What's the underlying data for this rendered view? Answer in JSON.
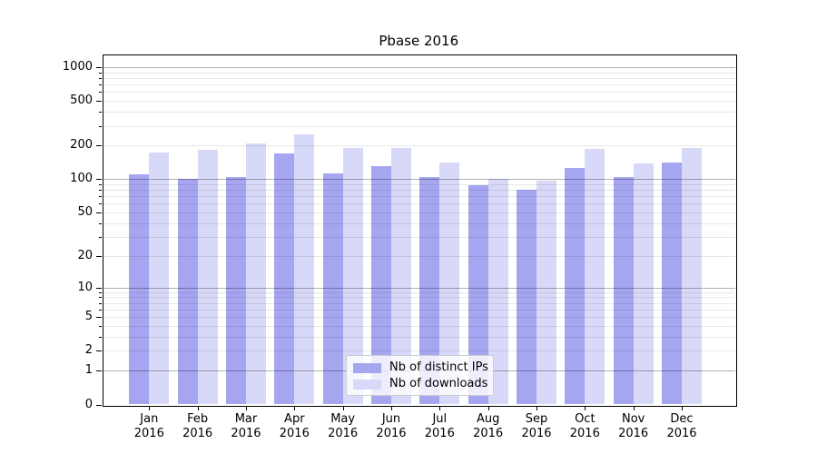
{
  "chart_data": {
    "type": "bar",
    "title": "Pbase 2016",
    "categories": [
      "Jan",
      "Feb",
      "Mar",
      "Apr",
      "May",
      "Jun",
      "Jul",
      "Aug",
      "Sep",
      "Oct",
      "Nov",
      "Dec"
    ],
    "year_label": "2016",
    "series": [
      {
        "name": "Nb of distinct IPs",
        "color": "#a5a5f0",
        "values": [
          110,
          100,
          105,
          170,
          113,
          130,
          104,
          89,
          80,
          127,
          104,
          140
        ]
      },
      {
        "name": "Nb of downloads",
        "color": "#d8d8f8",
        "values": [
          172,
          184,
          209,
          250,
          190,
          189,
          142,
          100,
          97,
          188,
          138,
          192
        ]
      }
    ],
    "y_scale": "log1p",
    "y_ticks": [
      0,
      1,
      2,
      5,
      10,
      20,
      50,
      100,
      200,
      500,
      1000
    ],
    "y_minor_ticks": [
      3,
      4,
      6,
      7,
      8,
      9,
      30,
      40,
      60,
      70,
      80,
      90,
      300,
      400,
      600,
      700,
      800,
      900
    ],
    "ylim": [
      0,
      1300
    ],
    "xlabel": "",
    "ylabel": "",
    "grid": true,
    "grid_on_top_of_bars": true,
    "legend_position": "lower center",
    "colors": {
      "major_gridline": "rgba(0,0,0,0.30)",
      "minor_gridline": "rgba(0,0,0,0.09)",
      "spine": "#000000",
      "legend_border": "#cccccc"
    }
  }
}
